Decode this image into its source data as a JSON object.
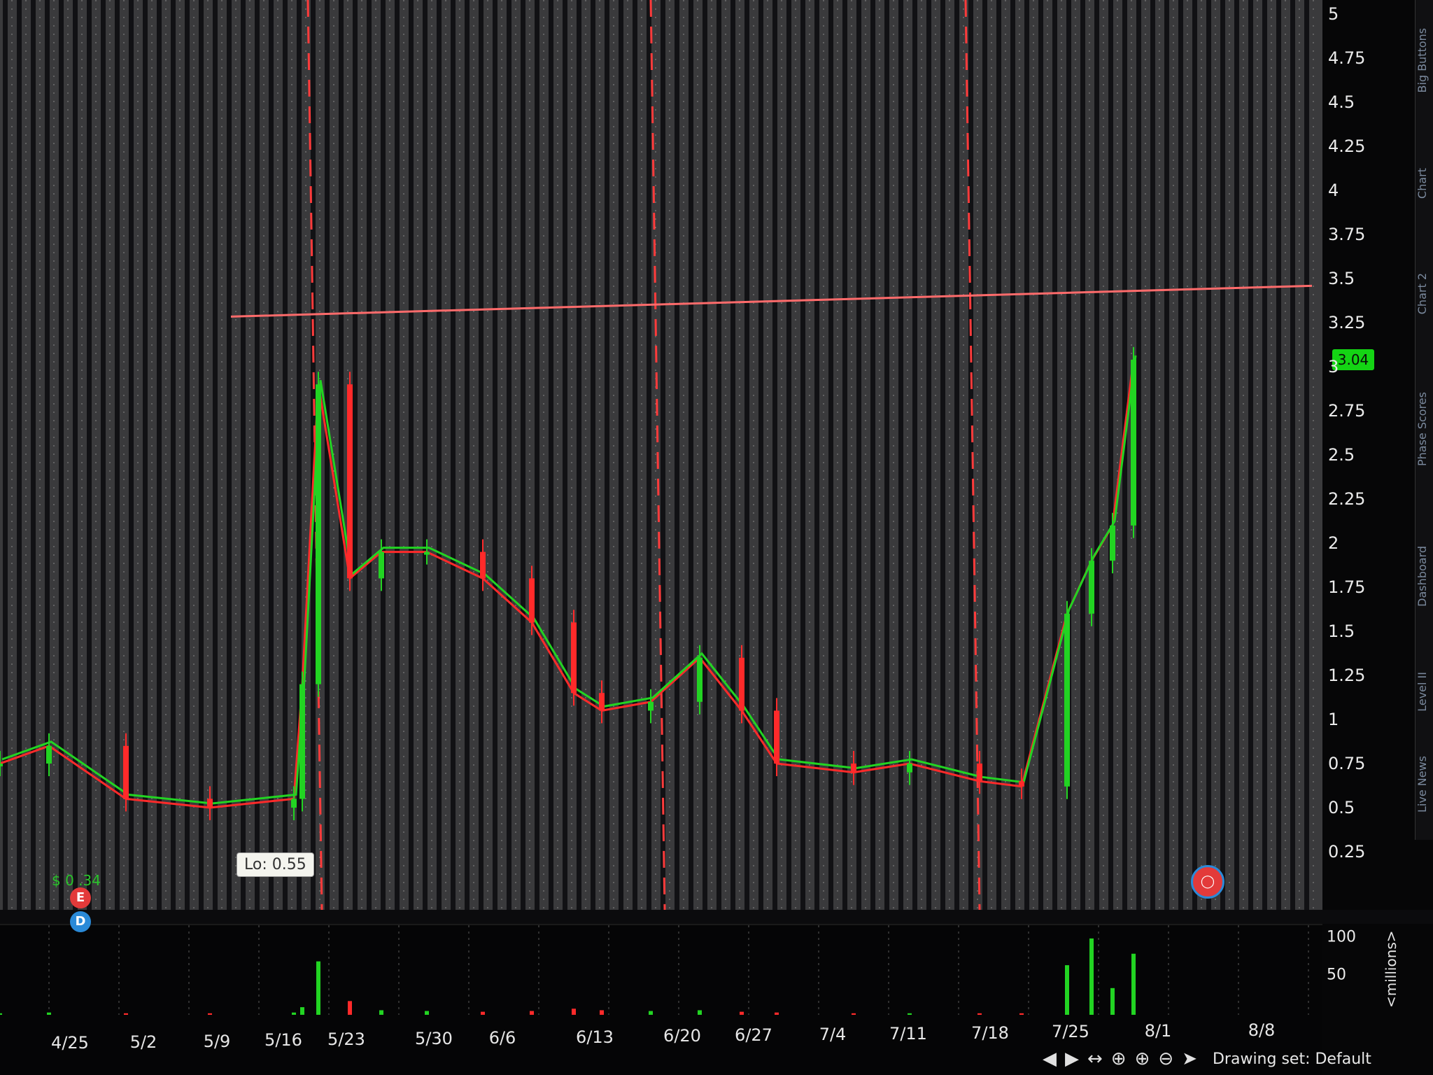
{
  "price_axis": {
    "ticks": [
      "5",
      "4.75",
      "4.5",
      "4.25",
      "4",
      "3.75",
      "3.5",
      "3.25",
      "3",
      "2.75",
      "2.5",
      "2.25",
      "2",
      "1.75",
      "1.5",
      "1.25",
      "1",
      "0.75",
      "0.5",
      "0.25"
    ],
    "last_price": "3.04",
    "last_price_color": "#14d414"
  },
  "volume_axis": {
    "ticks": [
      "100",
      "50"
    ],
    "unit_label": "<millions>"
  },
  "x_axis": {
    "ticks": [
      "4/25",
      "5/2",
      "5/9",
      "5/16",
      "5/23",
      "5/30",
      "6/6",
      "6/13",
      "6/20",
      "6/27",
      "7/4",
      "7/11",
      "7/18",
      "7/25",
      "8/1",
      "8/8"
    ]
  },
  "tooltip": {
    "lo_label": "Lo: 0.55"
  },
  "dividend_label": "$ 0 .34",
  "toolbar": {
    "drawing_set": "Drawing set: Default"
  },
  "side_tabs": [
    "Big Buttons",
    "Chart",
    "Chart 2",
    "Phase Scores",
    "Dashboard",
    "Level II",
    "Live News"
  ],
  "colors": {
    "up": "#22d422",
    "down": "#ff2a2a",
    "resistance_line": "#ff6b6b",
    "event_line": "#ff3b3b"
  },
  "chart_data": {
    "type": "candlestick",
    "x": [
      "4/18",
      "4/25",
      "5/2",
      "5/9",
      "5/16",
      "5/19",
      "5/20",
      "5/23",
      "5/26",
      "5/30",
      "6/2",
      "6/6",
      "6/9",
      "6/13",
      "6/16",
      "6/20",
      "6/23",
      "6/27",
      "7/4",
      "7/11",
      "7/18",
      "7/21",
      "7/25",
      "7/27",
      "7/28",
      "7/29"
    ],
    "close": [
      0.75,
      0.85,
      0.55,
      0.5,
      0.55,
      1.2,
      2.9,
      1.8,
      1.95,
      1.95,
      1.8,
      1.55,
      1.15,
      1.05,
      1.1,
      1.35,
      1.05,
      0.75,
      0.7,
      0.75,
      0.65,
      0.62,
      1.6,
      1.9,
      2.1,
      3.04
    ],
    "volume_millions": [
      2,
      3,
      2,
      2,
      3,
      10,
      70,
      18,
      6,
      5,
      4,
      5,
      8,
      6,
      5,
      6,
      4,
      3,
      2,
      2,
      2,
      2,
      65,
      100,
      35,
      80
    ],
    "ylim": [
      0,
      5
    ],
    "volume_ylim": [
      0,
      110
    ],
    "resistance_level": 3.3,
    "low_marker": 0.55
  }
}
